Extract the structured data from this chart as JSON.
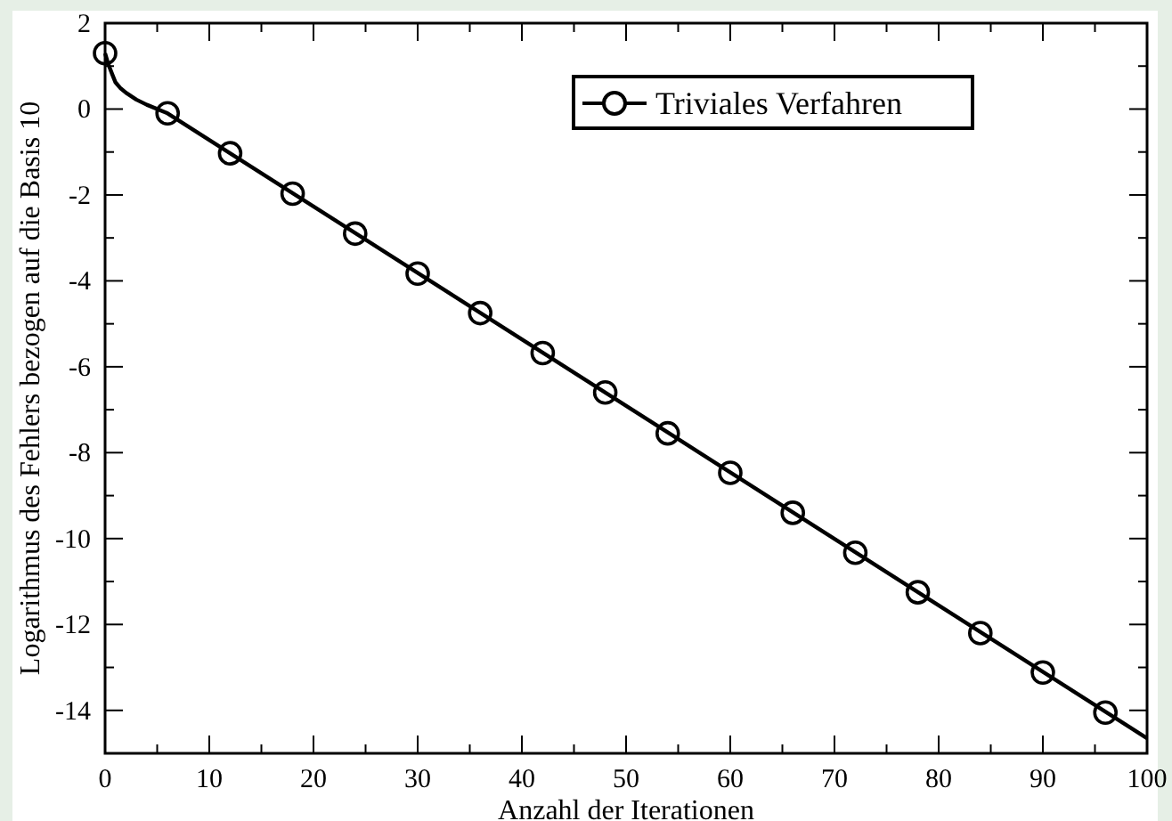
{
  "chart_data": {
    "type": "line",
    "xlabel": "Anzahl der Iterationen",
    "ylabel": "Logarithmus des Fehlers bezogen auf die Basis 10",
    "xlim": [
      0,
      100
    ],
    "ylim": [
      -15,
      2
    ],
    "xticks": [
      0,
      {
        "value": 5,
        "label": null
      },
      10,
      {
        "value": 15,
        "label": null
      },
      20,
      {
        "value": 25,
        "label": null
      },
      30,
      {
        "value": 35,
        "label": null
      },
      40,
      {
        "value": 45,
        "label": null
      },
      50,
      {
        "value": 55,
        "label": null
      },
      60,
      {
        "value": 65,
        "label": null
      },
      70,
      {
        "value": 75,
        "label": null
      },
      80,
      {
        "value": 85,
        "label": null
      },
      90,
      {
        "value": 95,
        "label": null
      },
      100
    ],
    "yticks": [
      -14,
      {
        "value": -13,
        "label": null
      },
      -12,
      {
        "value": -11,
        "label": null
      },
      -10,
      {
        "value": -9,
        "label": null
      },
      -8,
      {
        "value": -7,
        "label": null
      },
      -6,
      {
        "value": -5,
        "label": null
      },
      -4,
      {
        "value": -3,
        "label": null
      },
      -2,
      {
        "value": -1,
        "label": null
      },
      0,
      {
        "value": 1,
        "label": null
      },
      2
    ],
    "legend": "top right",
    "grid": false,
    "line_style": "solid",
    "series": [
      {
        "color": "#000000",
        "marker": "none",
        "x": [
          0,
          0.3,
          0.7,
          1,
          1.5,
          2,
          3,
          4,
          6,
          100
        ],
        "values": [
          1.3,
          1.05,
          0.8,
          0.62,
          0.48,
          0.38,
          0.22,
          0.1,
          -0.1,
          -14.65
        ]
      },
      {
        "name": "Triviales Verfahren",
        "type": "scatter",
        "color": "#000000",
        "marker": "circle",
        "x": [
          0,
          6,
          12,
          18,
          24,
          30,
          36,
          42,
          48,
          54,
          60,
          66,
          72,
          78,
          84,
          90,
          96
        ],
        "values": [
          1.3,
          -0.1,
          -1.03,
          -1.97,
          -2.9,
          -3.83,
          -4.75,
          -5.68,
          -6.6,
          -7.55,
          -8.47,
          -9.4,
          -10.33,
          -11.25,
          -12.2,
          -13.12,
          -14.05
        ]
      }
    ]
  }
}
